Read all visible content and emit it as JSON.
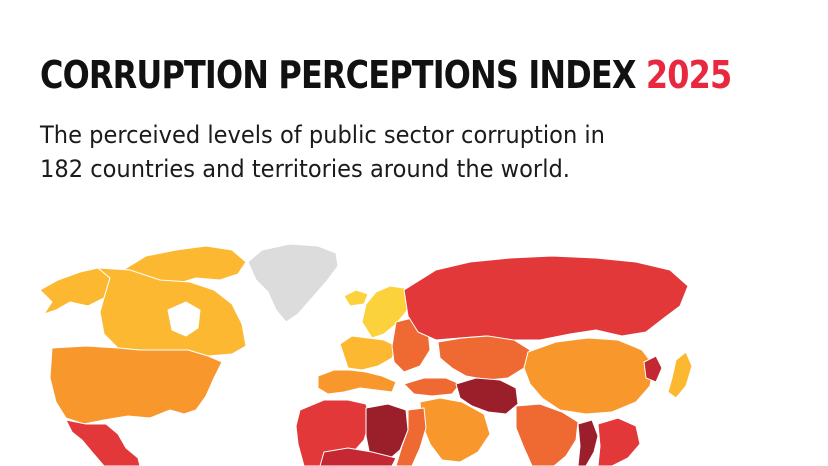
{
  "header": {
    "title_main": "CORRUPTION PERCEPTIONS INDEX",
    "title_year": "2025",
    "subtitle_line1": "The perceived levels of public sector corruption in",
    "subtitle_line2": "182 countries and territories around the world."
  },
  "colors": {
    "title": "#111111",
    "year_accent": "#e8283e",
    "no_data": "#dcdcdc",
    "scale": [
      "#fbd23c",
      "#fbb830",
      "#f7972c",
      "#ef6a32",
      "#e2383a",
      "#c42832",
      "#9b1f2b"
    ]
  }
}
